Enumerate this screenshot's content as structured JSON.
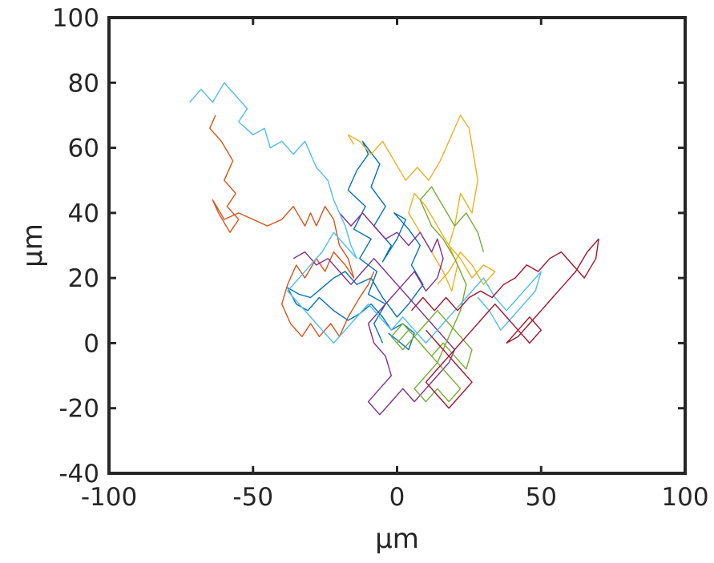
{
  "chart_data": {
    "type": "line",
    "title": "",
    "xlabel": "μm",
    "ylabel": "μm",
    "xlim": [
      -100,
      100
    ],
    "ylim": [
      -40,
      100
    ],
    "xticks": [
      -100,
      -50,
      0,
      50,
      100
    ],
    "yticks": [
      -40,
      -20,
      0,
      20,
      40,
      60,
      80,
      100
    ],
    "xtick_labels": [
      "-100",
      "-50",
      "0",
      "50",
      "100"
    ],
    "ytick_labels": [
      "-40",
      "-20",
      "0",
      "20",
      "40",
      "60",
      "80",
      "100"
    ],
    "grid": false,
    "legend": "none",
    "series": [
      {
        "color": "#0072BD",
        "x": [
          -5,
          -8,
          -4,
          -10,
          -7,
          -13,
          -9,
          -15,
          -11,
          -17,
          -14,
          -10,
          -12,
          -6,
          -9,
          -4,
          -8,
          -2,
          -5,
          0,
          3,
          -1,
          4,
          8,
          5,
          9,
          4,
          0,
          -5,
          -9,
          -14,
          -18,
          -22,
          -26,
          -30,
          -34,
          -38,
          -35,
          -31,
          -27,
          -22,
          -17,
          -13,
          -9,
          -5,
          -2,
          2,
          6,
          4,
          0,
          -3
        ],
        "y": [
          0,
          6,
          12,
          15,
          22,
          26,
          32,
          35,
          42,
          47,
          53,
          58,
          62,
          55,
          48,
          42,
          36,
          30,
          25,
          32,
          38,
          40,
          35,
          30,
          24,
          18,
          12,
          8,
          14,
          20,
          18,
          22,
          20,
          17,
          14,
          15,
          17,
          12,
          10,
          14,
          10,
          7,
          9,
          12,
          8,
          4,
          6,
          3,
          -2,
          1,
          3
        ]
      },
      {
        "color": "#D95319",
        "x": [
          -63,
          -65,
          -61,
          -57,
          -60,
          -56,
          -59,
          -55,
          -58,
          -62,
          -64,
          -60,
          -55,
          -50,
          -45,
          -40,
          -36,
          -32,
          -30,
          -28,
          -25,
          -22,
          -20,
          -17,
          -15,
          -18,
          -22,
          -25,
          -28,
          -32,
          -35,
          -38,
          -40,
          -37,
          -33,
          -30,
          -27,
          -23,
          -20,
          -17,
          -13,
          -10,
          -8
        ],
        "y": [
          70,
          66,
          62,
          56,
          50,
          46,
          42,
          38,
          34,
          40,
          44,
          38,
          40,
          38,
          36,
          38,
          42,
          36,
          40,
          36,
          42,
          38,
          30,
          26,
          20,
          24,
          28,
          22,
          26,
          20,
          24,
          18,
          12,
          6,
          2,
          6,
          2,
          6,
          2,
          8,
          14,
          18,
          22
        ]
      },
      {
        "color": "#EDB120",
        "x": [
          -15,
          -17,
          -13,
          -9,
          -5,
          -1,
          3,
          7,
          11,
          15,
          18,
          22,
          25,
          28,
          26,
          22,
          20,
          18,
          21,
          19,
          16,
          12,
          8,
          4,
          6,
          10,
          14,
          18,
          22,
          26,
          30,
          34,
          30,
          26,
          22,
          18,
          14
        ],
        "y": [
          61,
          64,
          62,
          58,
          62,
          56,
          50,
          54,
          50,
          56,
          62,
          70,
          66,
          50,
          40,
          46,
          36,
          30,
          24,
          16,
          22,
          28,
          34,
          40,
          46,
          42,
          36,
          30,
          26,
          20,
          24,
          22,
          18,
          24,
          28,
          22,
          18
        ]
      },
      {
        "color": "#7E2F8E",
        "x": [
          -20,
          -16,
          -12,
          -8,
          -4,
          0,
          4,
          8,
          12,
          14,
          16,
          14,
          10,
          6,
          2,
          -2,
          -6,
          -10,
          -8,
          -4,
          -2,
          -6,
          -10,
          -6,
          -2,
          2,
          6,
          10,
          14,
          18,
          20,
          16,
          12,
          8,
          4,
          0,
          -4,
          -8,
          -12,
          -16,
          -20,
          -24,
          -28,
          -32,
          -36
        ],
        "y": [
          40,
          36,
          40,
          36,
          32,
          34,
          30,
          34,
          28,
          32,
          26,
          20,
          16,
          22,
          18,
          14,
          10,
          6,
          0,
          -4,
          -10,
          -14,
          -18,
          -22,
          -18,
          -14,
          -18,
          -14,
          -10,
          -6,
          -2,
          2,
          6,
          10,
          14,
          18,
          22,
          26,
          22,
          18,
          22,
          26,
          24,
          28,
          26
        ]
      },
      {
        "color": "#77AC30",
        "x": [
          0,
          4,
          8,
          12,
          16,
          20,
          24,
          26,
          22,
          18,
          14,
          10,
          6,
          2,
          -2,
          2,
          6,
          10,
          14,
          18,
          22,
          18,
          14,
          10,
          6,
          10,
          14,
          18,
          22,
          24,
          20,
          16,
          12,
          8,
          12,
          16,
          20,
          24,
          28,
          30
        ],
        "y": [
          0,
          4,
          0,
          -4,
          0,
          -4,
          -8,
          -2,
          2,
          6,
          10,
          6,
          2,
          -2,
          2,
          6,
          2,
          -2,
          -6,
          -10,
          -14,
          -18,
          -14,
          -18,
          -14,
          -10,
          -6,
          2,
          10,
          18,
          26,
          32,
          36,
          44,
          48,
          42,
          36,
          40,
          34,
          28
        ]
      },
      {
        "color": "#4DBEEE",
        "x": [
          -72,
          -68,
          -64,
          -60,
          -56,
          -52,
          -55,
          -50,
          -46,
          -44,
          -40,
          -36,
          -32,
          -28,
          -24,
          -22,
          -20,
          -18,
          -16,
          -14,
          -18,
          -22,
          -26,
          -30,
          -34,
          -38,
          -34,
          -30,
          -26,
          -22,
          -18,
          -14,
          -10,
          -6,
          -2,
          2,
          6,
          10,
          14,
          18,
          22,
          26,
          30,
          34,
          38,
          42,
          46,
          50,
          48,
          44,
          40,
          36,
          32,
          28
        ],
        "y": [
          74,
          78,
          74,
          80,
          76,
          72,
          68,
          64,
          66,
          60,
          62,
          58,
          62,
          54,
          50,
          44,
          40,
          36,
          30,
          26,
          30,
          34,
          28,
          24,
          20,
          16,
          12,
          8,
          4,
          0,
          4,
          8,
          12,
          8,
          4,
          8,
          4,
          0,
          4,
          8,
          12,
          16,
          20,
          14,
          10,
          14,
          18,
          22,
          16,
          12,
          8,
          4,
          10,
          14
        ]
      },
      {
        "color": "#A2142F",
        "x": [
          5,
          9,
          13,
          17,
          21,
          25,
          29,
          33,
          37,
          41,
          45,
          49,
          53,
          57,
          61,
          65,
          69,
          70,
          66,
          62,
          58,
          54,
          50,
          46,
          42,
          38,
          42,
          46,
          50,
          46,
          42,
          38,
          34,
          30,
          26,
          22,
          18,
          14,
          10,
          14,
          18,
          22,
          26,
          22,
          18,
          14,
          10
        ],
        "y": [
          10,
          14,
          10,
          14,
          10,
          14,
          16,
          14,
          18,
          20,
          24,
          22,
          26,
          28,
          24,
          20,
          26,
          32,
          28,
          22,
          18,
          14,
          10,
          6,
          2,
          0,
          4,
          8,
          4,
          0,
          4,
          8,
          12,
          8,
          4,
          0,
          -4,
          -8,
          -12,
          -16,
          -20,
          -16,
          -12,
          -8,
          -4,
          0,
          4
        ]
      }
    ]
  }
}
